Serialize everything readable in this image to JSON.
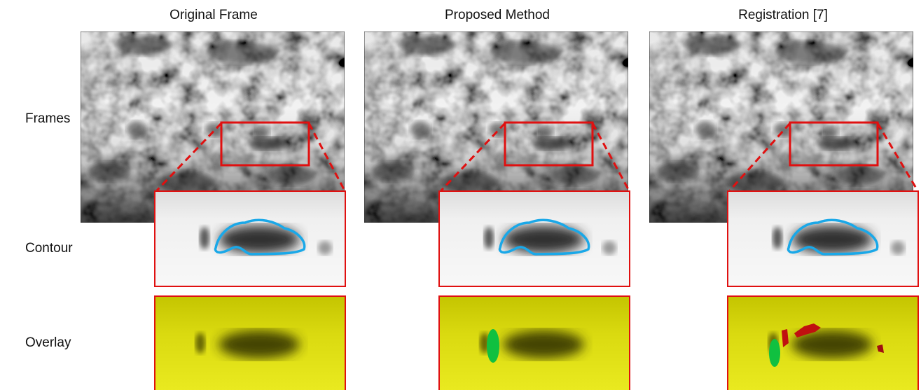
{
  "columns": [
    "Original Frame",
    "Proposed Method",
    "Registration [7]"
  ],
  "rows": [
    "Frames",
    "Contour",
    "Overlay"
  ]
}
